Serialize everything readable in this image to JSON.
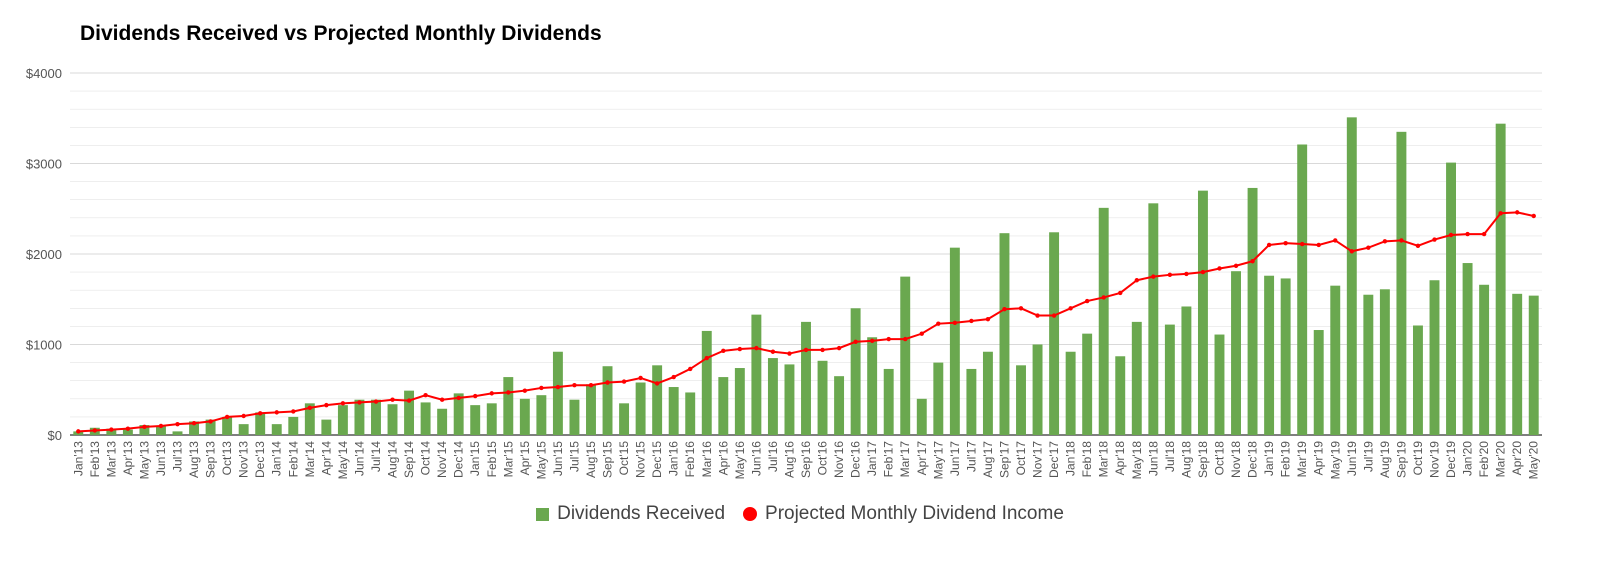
{
  "colors": {
    "bars": "#6aa84f",
    "line": "#ff0000",
    "grid": "#d9d9d9",
    "axis": "#333333",
    "text": "#555555"
  },
  "chart_data": {
    "type": "bar+line",
    "title": "Dividends Received vs Projected Monthly Dividends",
    "xlabel": "",
    "ylabel": "",
    "ylim": [
      0,
      4000
    ],
    "yticks": [
      0,
      1000,
      2000,
      3000,
      4000
    ],
    "ytick_labels": [
      "$0",
      "$1000",
      "$2000",
      "$3000",
      "$4000"
    ],
    "grid": true,
    "legend_position": "bottom",
    "categories": [
      "Jan'13",
      "Feb'13",
      "Mar'13",
      "Apr'13",
      "May'13",
      "Jun'13",
      "Jul'13",
      "Aug'13",
      "Sep'13",
      "Oct'13",
      "Nov'13",
      "Dec'13",
      "Jan'14",
      "Feb'14",
      "Mar'14",
      "Apr'14",
      "May'14",
      "Jun'14",
      "Jul'14",
      "Aug'14",
      "Sep'14",
      "Oct'14",
      "Nov'14",
      "Dec'14",
      "Jan'15",
      "Feb'15",
      "Mar'15",
      "Apr'15",
      "May'15",
      "Jun'15",
      "Jul'15",
      "Aug'15",
      "Sep'15",
      "Oct'15",
      "Nov'15",
      "Dec'15",
      "Jan'16",
      "Feb'16",
      "Mar'16",
      "Apr'16",
      "May'16",
      "Jun'16",
      "Jul'16",
      "Aug'16",
      "Sep'16",
      "Oct'16",
      "Nov'16",
      "Dec'16",
      "Jan'17",
      "Feb'17",
      "Mar'17",
      "Apr'17",
      "May'17",
      "Jun'17",
      "Jul'17",
      "Aug'17",
      "Sep'17",
      "Oct'17",
      "Nov'17",
      "Dec'17",
      "Jan'18",
      "Feb'18",
      "Mar'18",
      "Apr'18",
      "May'18",
      "Jun'18",
      "Jul'18",
      "Aug'18",
      "Sep'18",
      "Oct'18",
      "Nov'18",
      "Dec'18",
      "Jan'19",
      "Feb'19",
      "Mar'19",
      "Apr'19",
      "May'19",
      "Jun'19",
      "Jul'19",
      "Aug'19",
      "Sep'19",
      "Oct'19",
      "Nov'19",
      "Dec'19",
      "Jan'20",
      "Feb'20",
      "Mar'20",
      "Apr'20",
      "May'20"
    ],
    "series": [
      {
        "name": "Dividends Received",
        "kind": "bar",
        "values": [
          40,
          80,
          70,
          60,
          110,
          100,
          40,
          150,
          170,
          200,
          120,
          250,
          120,
          200,
          350,
          170,
          330,
          390,
          390,
          340,
          490,
          360,
          290,
          460,
          330,
          350,
          640,
          400,
          440,
          920,
          390,
          560,
          760,
          350,
          580,
          770,
          530,
          470,
          1150,
          640,
          740,
          1330,
          850,
          780,
          1250,
          820,
          650,
          1400,
          1080,
          730,
          1750,
          400,
          800,
          2070,
          730,
          920,
          2230,
          770,
          1000,
          2240,
          920,
          1120,
          2510,
          870,
          1250,
          2560,
          1220,
          1420,
          2700,
          1110,
          1810,
          2730,
          1760,
          1730,
          3210,
          1160,
          1650,
          3510,
          1550,
          1610,
          3350,
          1210,
          1710,
          3010,
          1900,
          1660,
          3440,
          1560,
          1540
        ]
      },
      {
        "name": "Projected Monthly Dividend Income",
        "kind": "line",
        "values": [
          40,
          50,
          60,
          70,
          90,
          100,
          120,
          130,
          150,
          200,
          210,
          240,
          250,
          260,
          300,
          330,
          350,
          360,
          370,
          390,
          380,
          440,
          390,
          410,
          430,
          460,
          470,
          490,
          520,
          530,
          550,
          550,
          580,
          590,
          630,
          570,
          640,
          730,
          850,
          930,
          950,
          960,
          920,
          900,
          940,
          940,
          960,
          1030,
          1040,
          1060,
          1060,
          1120,
          1230,
          1240,
          1260,
          1280,
          1390,
          1400,
          1320,
          1320,
          1400,
          1480,
          1520,
          1570,
          1710,
          1750,
          1770,
          1780,
          1800,
          1840,
          1870,
          1920,
          2100,
          2120,
          2110,
          2100,
          2150,
          2030,
          2070,
          2140,
          2150,
          2090,
          2160,
          2210,
          2220,
          2220,
          2450,
          2460,
          2420
        ]
      }
    ]
  }
}
